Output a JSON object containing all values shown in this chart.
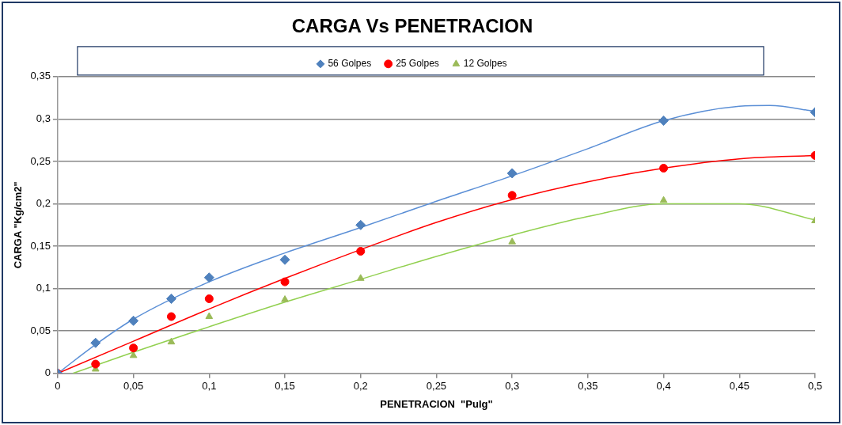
{
  "chart_data": {
    "type": "scatter",
    "title": "CARGA Vs PENETRACION",
    "xlabel": "PENETRACION  \"Pulg\"",
    "ylabel": "CARGA \"Kg/cm2\"",
    "xlim": [
      0,
      0.5
    ],
    "ylim": [
      0,
      0.35
    ],
    "xticks": [
      0,
      {
        "value": 0.05,
        "label": "0,05"
      },
      {
        "value": 0.1,
        "label": "0,1"
      },
      {
        "value": 0.15,
        "label": "0,15"
      },
      {
        "value": 0.2,
        "label": "0,2"
      },
      {
        "value": 0.25,
        "label": "0,25"
      },
      {
        "value": 0.3,
        "label": "0,3"
      },
      {
        "value": 0.35,
        "label": "0,35"
      },
      {
        "value": 0.4,
        "label": "0,4"
      },
      {
        "value": 0.45,
        "label": "0,45"
      },
      {
        "value": 0.5,
        "label": "0,5"
      }
    ],
    "yticks": [
      0,
      {
        "value": 0.05,
        "label": "0,05"
      },
      {
        "value": 0.1,
        "label": "0,1"
      },
      {
        "value": 0.15,
        "label": "0,15"
      },
      {
        "value": 0.2,
        "label": "0,2"
      },
      {
        "value": 0.25,
        "label": "0,25"
      },
      {
        "value": 0.3,
        "label": "0,3"
      },
      {
        "value": 0.35,
        "label": "0,35"
      }
    ],
    "grid": "y",
    "legend": "top",
    "series": [
      {
        "name": "56 Golpes",
        "type": "scatter",
        "marker": "diamond",
        "color": "#4f81bd",
        "x": [
          0,
          0.025,
          0.05,
          0.075,
          0.1,
          0.15,
          0.2,
          0.3,
          0.4,
          0.5
        ],
        "values": [
          0,
          0.036,
          0.062,
          0.088,
          0.113,
          0.134,
          0.175,
          0.236,
          0.298,
          0.308
        ]
      },
      {
        "name": "25 Golpes",
        "type": "scatter",
        "marker": "circle",
        "color": "#ff0000",
        "x": [
          0,
          0.025,
          0.05,
          0.075,
          0.1,
          0.15,
          0.2,
          0.3,
          0.4,
          0.5
        ],
        "values": [
          0,
          0.011,
          0.03,
          0.067,
          0.088,
          0.108,
          0.144,
          0.21,
          0.242,
          0.257
        ]
      },
      {
        "name": "12 Golpes",
        "type": "scatter",
        "marker": "triangle",
        "color": "#9bbb59",
        "x": [
          0,
          0.025,
          0.05,
          0.075,
          0.1,
          0.15,
          0.2,
          0.3,
          0.4,
          0.5
        ],
        "values": [
          0,
          0.005,
          0.021,
          0.037,
          0.067,
          0.087,
          0.112,
          0.155,
          0.204,
          0.18
        ]
      },
      {
        "type": "line",
        "marker": "none",
        "color": "#5b8fd6",
        "x": [
          0,
          0.025,
          0.05,
          0.1,
          0.15,
          0.2,
          0.25,
          0.3,
          0.35,
          0.4,
          0.45,
          0.47,
          0.5
        ],
        "values": [
          0,
          0.034,
          0.064,
          0.108,
          0.142,
          0.172,
          0.203,
          0.233,
          0.265,
          0.298,
          0.315,
          0.316,
          0.309
        ]
      },
      {
        "type": "line",
        "marker": "none",
        "color": "#ff0000",
        "x": [
          0,
          0.05,
          0.1,
          0.15,
          0.2,
          0.25,
          0.3,
          0.35,
          0.4,
          0.45,
          0.5
        ],
        "values": [
          0,
          0.038,
          0.076,
          0.112,
          0.146,
          0.178,
          0.205,
          0.226,
          0.242,
          0.253,
          0.257
        ]
      },
      {
        "type": "line",
        "marker": "none",
        "color": "#92d050",
        "x": [
          0.01,
          0.05,
          0.1,
          0.15,
          0.2,
          0.25,
          0.3,
          0.35,
          0.4,
          0.45,
          0.5
        ],
        "values": [
          0,
          0.025,
          0.055,
          0.084,
          0.111,
          0.138,
          0.163,
          0.185,
          0.2,
          0.2,
          0.181
        ]
      }
    ]
  }
}
